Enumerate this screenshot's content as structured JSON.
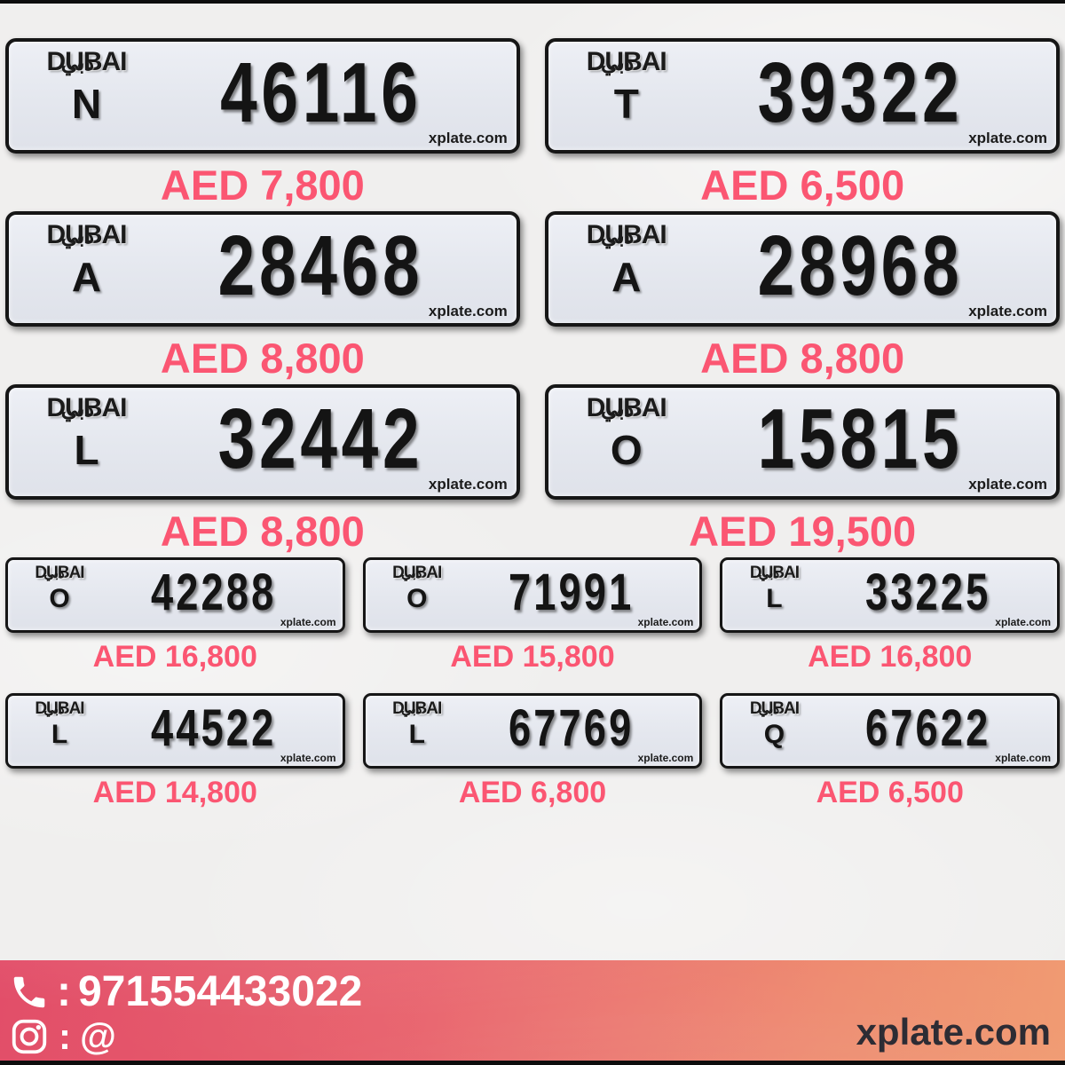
{
  "logo": {
    "latin": "DUBAI",
    "arabic": "دبي"
  },
  "watermark": "xplate.com",
  "rows": [
    {
      "size": "large",
      "plates": [
        {
          "letter": "N",
          "number": "46116",
          "price": "AED 7,800"
        },
        {
          "letter": "T",
          "number": "39322",
          "price": "AED 6,500"
        }
      ]
    },
    {
      "size": "large",
      "plates": [
        {
          "letter": "A",
          "number": "28468",
          "price": "AED 8,800"
        },
        {
          "letter": "A",
          "number": "28968",
          "price": "AED 8,800"
        }
      ]
    },
    {
      "size": "large",
      "plates": [
        {
          "letter": "L",
          "number": "32442",
          "price": "AED 8,800"
        },
        {
          "letter": "O",
          "number": "15815",
          "price": "AED 19,500"
        }
      ]
    },
    {
      "size": "small",
      "plates": [
        {
          "letter": "O",
          "number": "42288",
          "price": "AED 16,800"
        },
        {
          "letter": "O",
          "number": "71991",
          "price": "AED 15,800"
        },
        {
          "letter": "L",
          "number": "33225",
          "price": "AED 16,800"
        }
      ]
    },
    {
      "size": "small",
      "plates": [
        {
          "letter": "L",
          "number": "44522",
          "price": "AED 14,800"
        },
        {
          "letter": "L",
          "number": "67769",
          "price": "AED 6,800"
        },
        {
          "letter": "Q",
          "number": "67622",
          "price": "AED 6,500"
        }
      ]
    }
  ],
  "footer": {
    "phone_separator": ":",
    "phone_number": "971554433022",
    "instagram_separator": ":",
    "instagram_handle": "@",
    "site": "xplate.com",
    "icons": {
      "phone": "phone-icon",
      "instagram": "instagram-icon"
    }
  },
  "colors": {
    "price_text": "#fb5672",
    "plate_background": "#e6e9ef",
    "plate_border": "#161616",
    "footer_gradient_left": "#e24e69",
    "footer_gradient_right": "#f09b72",
    "footer_text": "#ffffff",
    "footer_site_text": "#2d2c34",
    "page_background": "#f0efee"
  }
}
